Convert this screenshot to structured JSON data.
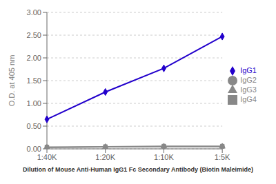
{
  "chart_data": {
    "type": "line",
    "xlabel": "Dilution of Mouse Anti-Human IgG1 Fc Secondary Antibody (Biotin Maleimide)",
    "ylabel": "O.D. at 405 nm",
    "categories": [
      "1:40K",
      "1:20K",
      "1:10K",
      "1:5K"
    ],
    "series": [
      {
        "name": "IgG1",
        "color": "#2200CC",
        "marker": "diamond",
        "values": [
          0.65,
          1.25,
          1.77,
          2.47
        ]
      },
      {
        "name": "IgG2",
        "color": "#888888",
        "marker": "circle",
        "values": [
          0.03,
          0.04,
          0.05,
          0.05
        ]
      },
      {
        "name": "IgG3",
        "color": "#888888",
        "marker": "triangle",
        "values": [
          0.03,
          0.04,
          0.05,
          0.05
        ]
      },
      {
        "name": "IgG4",
        "color": "#888888",
        "marker": "square",
        "values": [
          0.04,
          0.05,
          0.06,
          0.06
        ]
      }
    ],
    "ylim": [
      0.0,
      3.0
    ],
    "yticks": [
      {
        "value": 0.0,
        "label": "0.00"
      },
      {
        "value": 0.5,
        "label": "0.50"
      },
      {
        "value": 1.0,
        "label": "1.00"
      },
      {
        "value": 1.5,
        "label": "1.50"
      },
      {
        "value": 2.0,
        "label": "2.00"
      },
      {
        "value": 2.5,
        "label": "2.50"
      },
      {
        "value": 3.0,
        "label": "3.00"
      }
    ],
    "grid": true,
    "legend": "right"
  }
}
